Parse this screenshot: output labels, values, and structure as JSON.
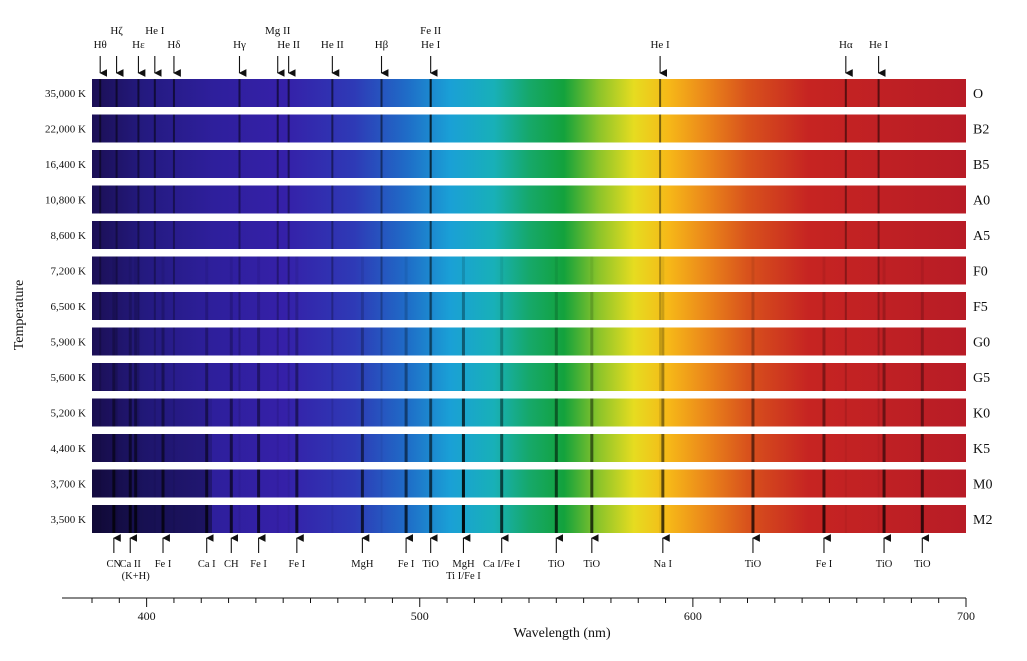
{
  "chart_data": {
    "type": "heatmap",
    "title": "",
    "xlabel": "Wavelength (nm)",
    "ylabel": "Temperature",
    "xlim": [
      380,
      700
    ],
    "x_ticks": [
      400,
      500,
      600,
      700
    ],
    "grid": false,
    "spectra": [
      {
        "temperature": "35,000 K",
        "class": "O"
      },
      {
        "temperature": "22,000 K",
        "class": "B2"
      },
      {
        "temperature": "16,400 K",
        "class": "B5"
      },
      {
        "temperature": "10,800 K",
        "class": "A0"
      },
      {
        "temperature": "8,600 K",
        "class": "A5"
      },
      {
        "temperature": "7,200 K",
        "class": "F0"
      },
      {
        "temperature": "6,500 K",
        "class": "F5"
      },
      {
        "temperature": "5,900 K",
        "class": "G0"
      },
      {
        "temperature": "5,600 K",
        "class": "G5"
      },
      {
        "temperature": "5,200 K",
        "class": "K0"
      },
      {
        "temperature": "4,400 K",
        "class": "K5"
      },
      {
        "temperature": "3,700 K",
        "class": "M0"
      },
      {
        "temperature": "3,500 K",
        "class": "M2"
      }
    ],
    "top_lines": [
      {
        "wavelength": 383,
        "label": "Hθ",
        "level": 2
      },
      {
        "wavelength": 389,
        "label": "Hζ",
        "level": 3
      },
      {
        "wavelength": 397,
        "label": "Hε",
        "level": 2
      },
      {
        "wavelength": 403,
        "label": "He I",
        "level": 3
      },
      {
        "wavelength": 410,
        "label": "Hδ",
        "level": 2
      },
      {
        "wavelength": 434,
        "label": "Hγ",
        "level": 2
      },
      {
        "wavelength": 448,
        "label": "Mg II",
        "level": 3
      },
      {
        "wavelength": 452,
        "label": "He II",
        "level": 2
      },
      {
        "wavelength": 468,
        "label": "He II",
        "level": 2
      },
      {
        "wavelength": 486,
        "label": "Hβ",
        "level": 2
      },
      {
        "wavelength": 504,
        "label": "Fe II",
        "level": 3
      },
      {
        "wavelength": 504,
        "label": "He I",
        "level": 2
      },
      {
        "wavelength": 588,
        "label": "He I",
        "level": 2
      },
      {
        "wavelength": 656,
        "label": "Hα",
        "level": 2
      },
      {
        "wavelength": 668,
        "label": "He I",
        "level": 2
      }
    ],
    "bottom_lines": [
      {
        "wavelength": 388,
        "label": "CN",
        "level": 1
      },
      {
        "wavelength": 394,
        "label": "Ca II",
        "level": 1
      },
      {
        "wavelength": 396,
        "label": "(K+H)",
        "level": 2
      },
      {
        "wavelength": 406,
        "label": "Fe I",
        "level": 1
      },
      {
        "wavelength": 422,
        "label": "Ca I",
        "level": 1
      },
      {
        "wavelength": 431,
        "label": "CH",
        "level": 1
      },
      {
        "wavelength": 441,
        "label": "Fe I",
        "level": 1
      },
      {
        "wavelength": 455,
        "label": "Fe I",
        "level": 1
      },
      {
        "wavelength": 479,
        "label": "MgH",
        "level": 1
      },
      {
        "wavelength": 495,
        "label": "Fe I",
        "level": 1
      },
      {
        "wavelength": 504,
        "label": "TiO",
        "level": 1
      },
      {
        "wavelength": 516,
        "label": "MgH",
        "level": 1
      },
      {
        "wavelength": 516,
        "label": "Ti I/Fe I",
        "level": 2
      },
      {
        "wavelength": 530,
        "label": "Ca I/Fe I",
        "level": 1
      },
      {
        "wavelength": 550,
        "label": "TiO",
        "level": 1
      },
      {
        "wavelength": 563,
        "label": "TiO",
        "level": 1
      },
      {
        "wavelength": 589,
        "label": "Na I",
        "level": 1
      },
      {
        "wavelength": 622,
        "label": "TiO",
        "level": 1
      },
      {
        "wavelength": 648,
        "label": "Fe I",
        "level": 1
      },
      {
        "wavelength": 670,
        "label": "TiO",
        "level": 1
      },
      {
        "wavelength": 684,
        "label": "TiO",
        "level": 1
      }
    ]
  }
}
